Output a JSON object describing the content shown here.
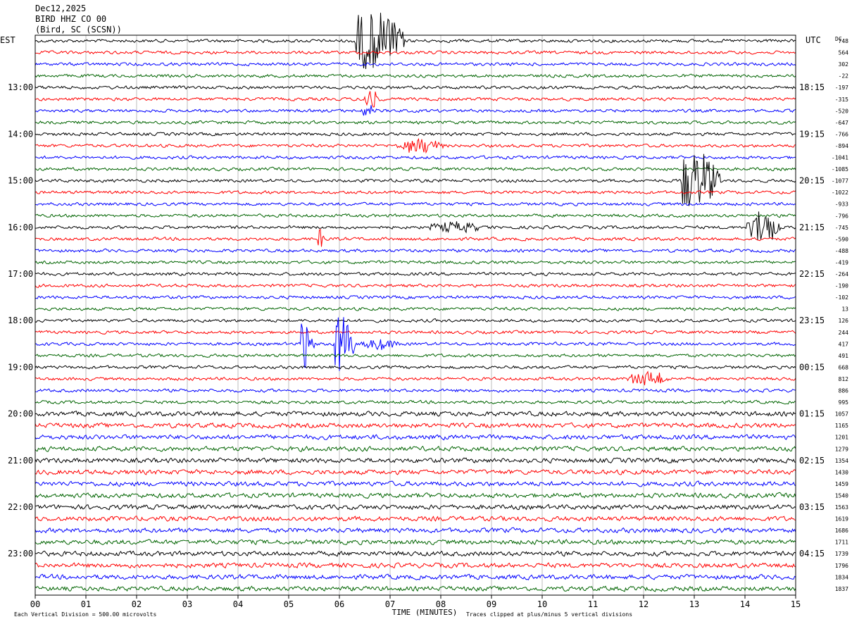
{
  "header": {
    "date": "Dec12,2025",
    "station": "BIRD HHZ CO 00",
    "location": "(Bird, SC (SCSN))"
  },
  "chart_data": {
    "type": "line",
    "title": "BIRD HHZ CO 00",
    "xlabel": "TIME (MINUTES)",
    "xlim": [
      0,
      15
    ],
    "x_ticks": [
      "00",
      "01",
      "02",
      "03",
      "04",
      "05",
      "06",
      "07",
      "08",
      "09",
      "10",
      "11",
      "12",
      "13",
      "14",
      "15"
    ],
    "left_axis_label": "EST",
    "right_axis_label": "UTC",
    "dc_label": "DC",
    "rows_per_hour": 4,
    "row_minutes": 15,
    "trace_colors": [
      "#000000",
      "#ff0000",
      "#0000ff",
      "#006400"
    ],
    "est_hour_labels": [
      "13:00",
      "14:00",
      "15:00",
      "16:00",
      "17:00",
      "18:00",
      "19:00",
      "20:00",
      "21:00",
      "22:00",
      "23:00"
    ],
    "utc_hour_labels": [
      "18:15",
      "19:15",
      "20:15",
      "21:15",
      "22:15",
      "23:15",
      "00:15",
      "01:15",
      "02:15",
      "03:15",
      "04:15"
    ],
    "dc_offsets": [
      "748",
      "564",
      "302",
      "-22",
      "-197",
      "-315",
      "-520",
      "-647",
      "-766",
      "-894",
      "-1041",
      "-1085",
      "-1077",
      "-1022",
      "-933",
      "-796",
      "-745",
      "-590",
      "-488",
      "-419",
      "-264",
      "-190",
      "-102",
      "13",
      "126",
      "244",
      "417",
      "491",
      "668",
      "812",
      "886",
      "995",
      "1057",
      "1165",
      "1201",
      "1279",
      "1354",
      "1430",
      "1459",
      "1540",
      "1563",
      "1619",
      "1686",
      "1711",
      "1739",
      "1796",
      "1834",
      "1837"
    ],
    "scale_note": "Each Vertical Division =  500.00 microvolts",
    "clip_note": "Traces clipped at plus/minus 5 vertical divisions",
    "events": [
      {
        "row": 0,
        "start_min": 6.3,
        "end_min": 7.3,
        "amp": 5,
        "clipped": true
      },
      {
        "row": 5,
        "start_min": 6.4,
        "end_min": 6.8,
        "amp": 1.8
      },
      {
        "row": 6,
        "start_min": 6.4,
        "end_min": 6.8,
        "amp": 1.5
      },
      {
        "row": 9,
        "start_min": 7.1,
        "end_min": 8.1,
        "amp": 1.4
      },
      {
        "row": 12,
        "start_min": 12.75,
        "end_min": 13.5,
        "amp": 5,
        "clipped": true
      },
      {
        "row": 16,
        "start_min": 7.6,
        "end_min": 8.9,
        "amp": 0.9
      },
      {
        "row": 16,
        "start_min": 14.0,
        "end_min": 14.7,
        "amp": 3.5
      },
      {
        "row": 17,
        "start_min": 5.55,
        "end_min": 5.7,
        "amp": 2.0
      },
      {
        "row": 26,
        "start_min": 5.25,
        "end_min": 5.5,
        "amp": 5,
        "clipped": true
      },
      {
        "row": 26,
        "start_min": 5.9,
        "end_min": 6.3,
        "amp": 5,
        "clipped": true
      },
      {
        "row": 26,
        "start_min": 6.3,
        "end_min": 7.2,
        "amp": 1.0
      },
      {
        "row": 29,
        "start_min": 11.6,
        "end_min": 12.6,
        "amp": 1.3
      }
    ]
  }
}
